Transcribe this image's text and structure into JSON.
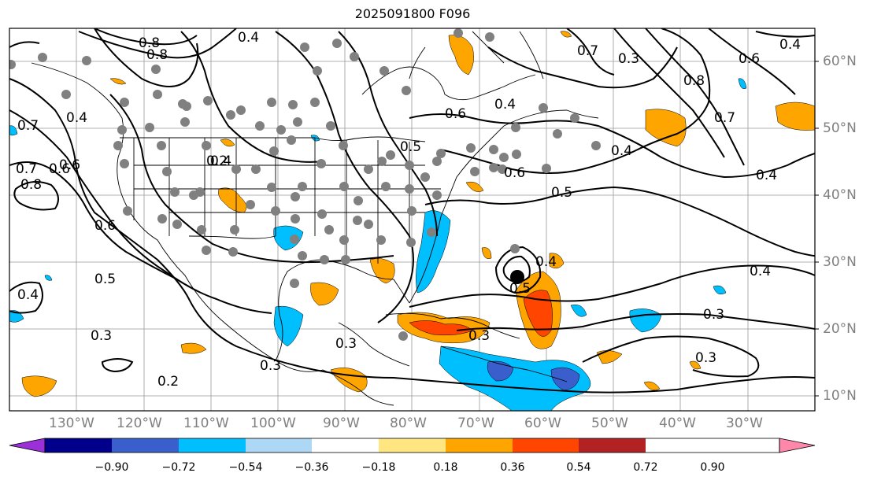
{
  "title": "2025091800 F096",
  "lat_labels": [
    "60°N",
    "50°N",
    "40°N",
    "30°N",
    "20°N",
    "10°N"
  ],
  "lon_labels": [
    "130°W",
    "120°W",
    "110°W",
    "100°W",
    "90°W",
    "80°W",
    "70°W",
    "60°W",
    "50°W",
    "40°W",
    "30°W"
  ],
  "contour_labels": [
    "0.8",
    "0.4",
    "0.7",
    "0.3",
    "0.6",
    "0.4",
    "0.8",
    "0.7",
    "0.4",
    "0.5",
    "0.6",
    "0.4",
    "0.6",
    "0.2",
    "0.6",
    "0.5",
    "0.4",
    "0.3",
    "0.2",
    "0.3",
    "0.3",
    "0.5",
    "0.4",
    "0.3",
    "0.4",
    "0.3",
    "0.4",
    "0.6",
    "0.7",
    "0.4",
    "0.8",
    "0.8",
    "0.6",
    "0.3",
    "0.5",
    "0.4",
    "0.7"
  ],
  "colorbar": {
    "ticks": [
      "−0.90",
      "−0.72",
      "−0.54",
      "−0.36",
      "−0.18",
      "0.18",
      "0.36",
      "0.54",
      "0.72",
      "0.90"
    ],
    "colors": [
      "#9b30d9",
      "#00008b",
      "#3a5fcd",
      "#00bfff",
      "#add8f5",
      "#ffffff",
      "#ffe680",
      "#ffa500",
      "#ff4500",
      "#b22222",
      "#ff88aa"
    ]
  },
  "colors": {
    "positive_moderate": "#ffa500",
    "positive_strong": "#ff4500",
    "negative_moderate": "#00bfff",
    "negative_strong": "#3a5fcd",
    "station_marker": "#808080",
    "storm_center": "#000000"
  }
}
